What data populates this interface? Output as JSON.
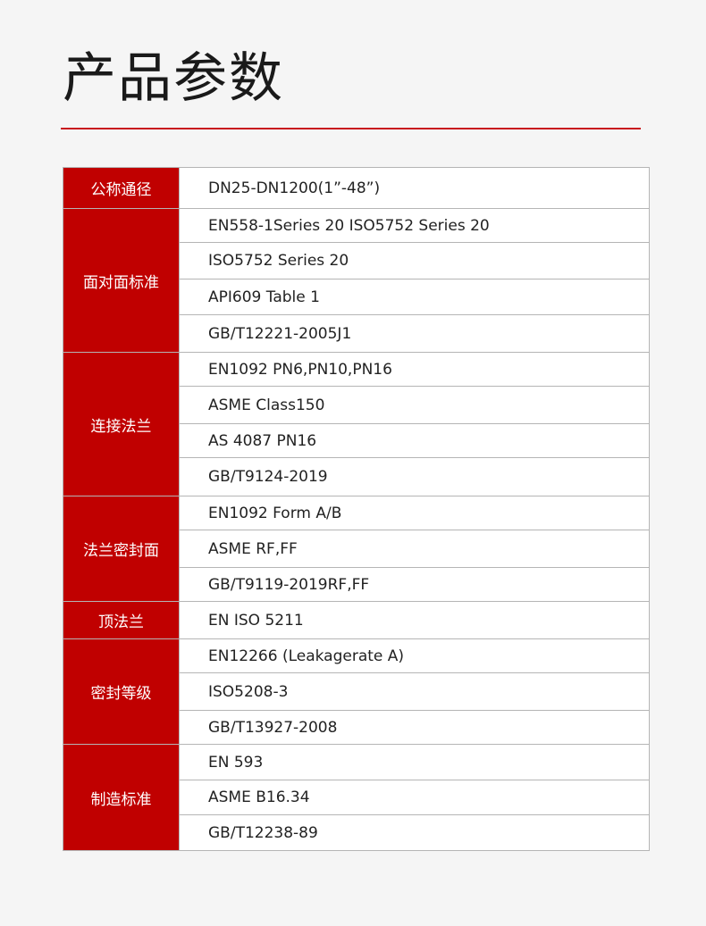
{
  "title": "产品参数",
  "colors": {
    "accent": "#c00000",
    "rule": "#c8161d",
    "background": "#f5f5f5"
  },
  "groups": [
    {
      "label": "公称通径",
      "values": [
        "DN25-DN1200(1”-48”)"
      ]
    },
    {
      "label": "面对面标准",
      "values": [
        "EN558-1Series 20 ISO5752 Series 20",
        "ISO5752 Series 20",
        "API609 Table 1",
        "GB/T12221-2005J1"
      ]
    },
    {
      "label": "连接法兰",
      "values": [
        "EN1092 PN6,PN10,PN16",
        "ASME Class150",
        "AS 4087 PN16",
        "GB/T9124-2019"
      ]
    },
    {
      "label": "法兰密封面",
      "values": [
        "EN1092 Form A/B",
        "ASME RF,FF",
        "GB/T9119-2019RF,FF"
      ]
    },
    {
      "label": "顶法兰",
      "values": [
        "EN ISO 5211"
      ]
    },
    {
      "label": "密封等级",
      "values": [
        "EN12266 (Leakagerate A)",
        "ISO5208-3",
        "GB/T13927-2008"
      ]
    },
    {
      "label": "制造标准",
      "values": [
        "EN 593",
        "ASME B16.34",
        "GB/T12238-89"
      ]
    }
  ]
}
